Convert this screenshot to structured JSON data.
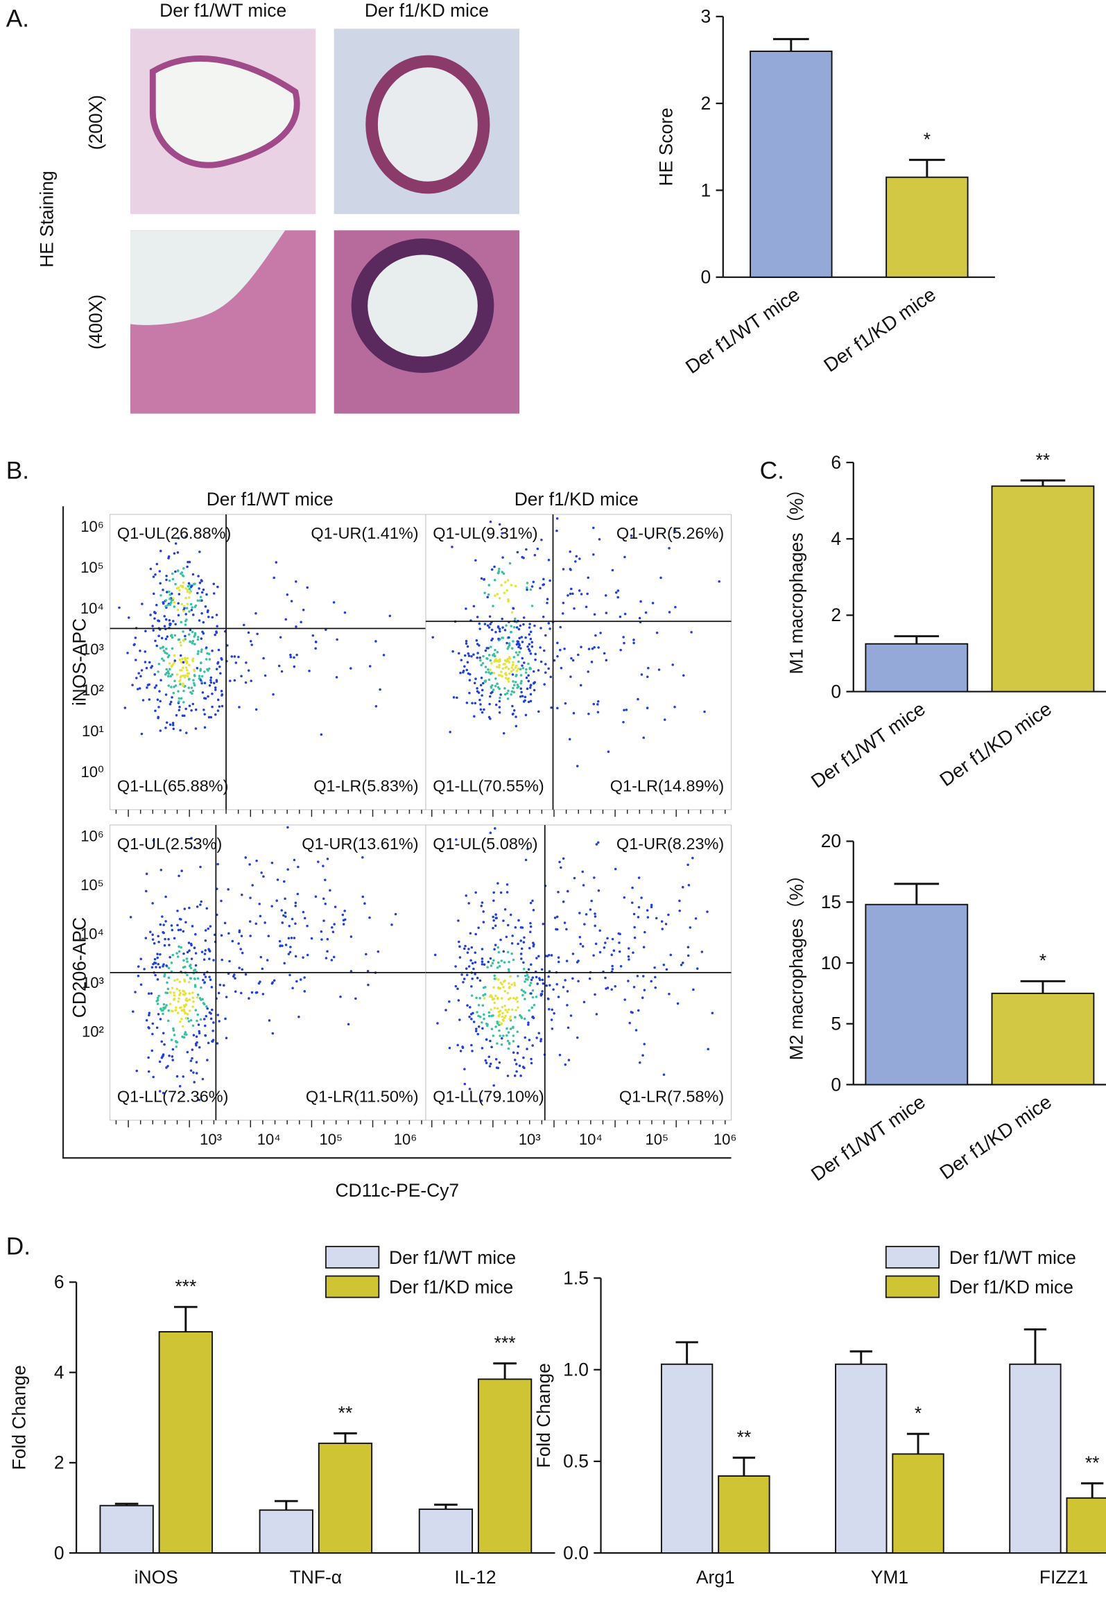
{
  "figure": {
    "panels": [
      "A.",
      "B.",
      "C.",
      "D."
    ],
    "histology": {
      "columns": [
        "Der f1/WT mice",
        "Der f1/KD mice"
      ],
      "rows": [
        "(200X)",
        "(400X)"
      ],
      "label": "HE Staining"
    },
    "flow": {
      "columns": [
        "Der f1/WT mice",
        "Der f1/KD mice"
      ],
      "x_label": "CD11c-PE-Cy7",
      "x_ticks": [
        "10³",
        "10⁴",
        "10⁵",
        "10⁶"
      ],
      "rows": [
        {
          "y_label": "iNOS-APC",
          "y_ticks": [
            "10⁶",
            "10⁵",
            "10⁴",
            "10³",
            "10²",
            "10¹",
            "10⁰"
          ],
          "plots": [
            [
              "Q1-UL(26.88%)",
              "Q1-UR(1.41%)",
              "Q1-LL(65.88%)",
              "Q1-LR(5.83%)"
            ],
            [
              "Q1-UL(9.31%)",
              "Q1-UR(5.26%)",
              "Q1-LL(70.55%)",
              "Q1-LR(14.89%)"
            ]
          ]
        },
        {
          "y_label": "CD206-APC",
          "y_ticks": [
            "10⁶",
            "10⁵",
            "10⁴",
            "10³",
            "10²"
          ],
          "plots": [
            [
              "Q1-UL(2.53%)",
              "Q1-UR(13.61%)",
              "Q1-LL(72.36%)",
              "Q1-LR(11.50%)"
            ],
            [
              "Q1-UL(5.08%)",
              "Q1-UR(8.23%)",
              "Q1-LL(79.10%)",
              "Q1-LR(7.58%)"
            ]
          ]
        }
      ]
    }
  },
  "chart_data": [
    {
      "type": "bar",
      "ylabel": "HE Score",
      "categories": [
        "Der f1/WT mice",
        "Der f1/KD mice"
      ],
      "values": [
        2.6,
        1.15
      ],
      "errors": [
        0.14,
        0.2
      ],
      "colors": [
        "#94a9d8",
        "#d3c843"
      ],
      "annotations": [
        null,
        "*"
      ],
      "ylim": [
        0,
        3
      ],
      "yticks": [
        0,
        1,
        2,
        3
      ]
    },
    {
      "type": "bar",
      "ylabel": "M1 macrophages（%）",
      "categories": [
        "Der f1/WT mice",
        "Der f1/KD mice"
      ],
      "values": [
        1.25,
        5.38
      ],
      "errors": [
        0.2,
        0.15
      ],
      "colors": [
        "#94a9d8",
        "#d3c843"
      ],
      "annotations": [
        null,
        "**"
      ],
      "ylim": [
        0,
        6
      ],
      "yticks": [
        0,
        2,
        4,
        6
      ]
    },
    {
      "type": "bar",
      "ylabel": "M2 macrophages（%）",
      "categories": [
        "Der f1/WT mice",
        "Der f1/KD mice"
      ],
      "values": [
        14.8,
        7.5
      ],
      "errors": [
        1.7,
        1.0
      ],
      "colors": [
        "#94a9d8",
        "#d3c843"
      ],
      "annotations": [
        null,
        "*"
      ],
      "ylim": [
        0,
        20
      ],
      "yticks": [
        0,
        5,
        10,
        15,
        20
      ]
    },
    {
      "type": "grouped",
      "ylabel": "Fold Change",
      "categories": [
        "iNOS",
        "TNF-α",
        "IL-12"
      ],
      "ylim": [
        0,
        6
      ],
      "yticks": [
        0,
        2,
        4,
        6
      ],
      "series": [
        {
          "name": "Der f1/WT mice",
          "color": "#d5dbee",
          "values": [
            1.05,
            0.95,
            0.97
          ],
          "errors": [
            0.04,
            0.2,
            0.1
          ],
          "annotations": [
            null,
            null,
            null
          ]
        },
        {
          "name": "Der f1/KD mice",
          "color": "#cfc534",
          "values": [
            4.9,
            2.43,
            3.85
          ],
          "errors": [
            0.55,
            0.22,
            0.35
          ],
          "annotations": [
            "***",
            "**",
            "***"
          ]
        }
      ]
    },
    {
      "type": "grouped",
      "ylabel": "Fold Change",
      "categories": [
        "Arg1",
        "YM1",
        "FIZZ1"
      ],
      "ylim": [
        0,
        1.5
      ],
      "yticks": [
        {
          "value": 0,
          "label": "0.0"
        },
        {
          "value": 0.5,
          "label": "0.5"
        },
        {
          "value": 1,
          "label": "1.0"
        },
        {
          "value": 1.5,
          "label": "1.5"
        }
      ],
      "series": [
        {
          "name": "Der f1/WT mice",
          "color": "#d5dbee",
          "values": [
            1.03,
            1.03,
            1.03
          ],
          "errors": [
            0.12,
            0.07,
            0.19
          ],
          "annotations": [
            null,
            null,
            null
          ]
        },
        {
          "name": "Der f1/KD mice",
          "color": "#cfc534",
          "values": [
            0.42,
            0.54,
            0.3
          ],
          "errors": [
            0.1,
            0.11,
            0.08
          ],
          "annotations": [
            "**",
            "*",
            "**"
          ]
        }
      ]
    }
  ]
}
